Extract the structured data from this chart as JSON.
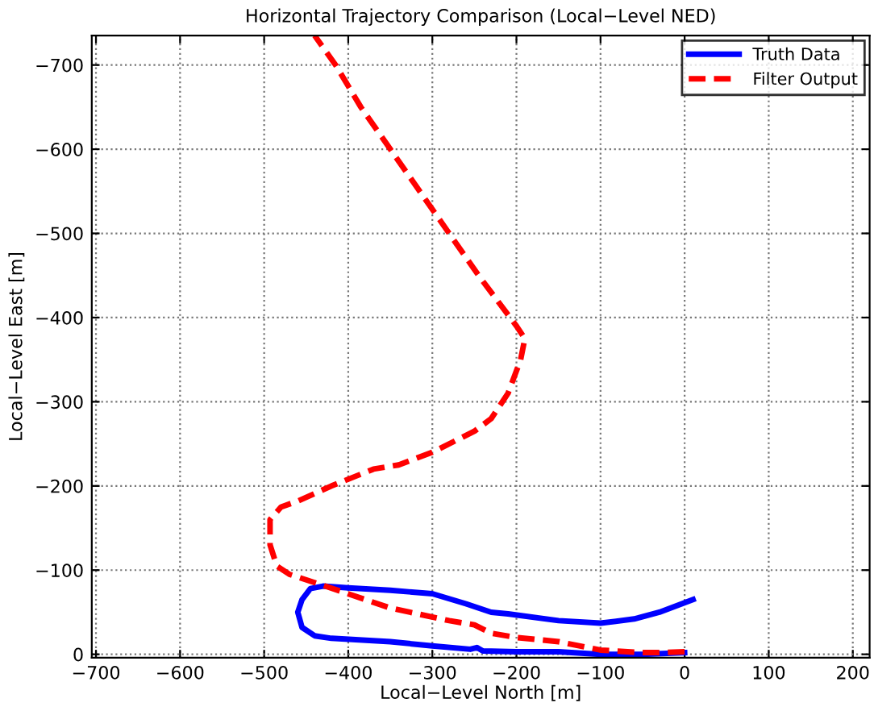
{
  "chart_data": {
    "type": "line",
    "title": "Horizontal Trajectory Comparison (Local−Level NED)",
    "xlabel": "Local−Level North [m]",
    "ylabel": "Local−Level East [m]",
    "xlim": [
      -705,
      220
    ],
    "ylim": [
      4,
      -735
    ],
    "xticks": [
      -700,
      -600,
      -500,
      -400,
      -300,
      -200,
      -100,
      0,
      100,
      200
    ],
    "yticks": [
      0,
      -100,
      -200,
      -300,
      -400,
      -500,
      -600,
      -700
    ],
    "grid": true,
    "legend": "top right",
    "series": [
      {
        "name": "Truth Data",
        "color": "#0000ff",
        "line_style": "solid",
        "x": [
          10,
          -30,
          -60,
          -100,
          -150,
          -210,
          -230,
          -260,
          -300,
          -350,
          -400,
          -430,
          -445,
          -455,
          -460,
          -455,
          -440,
          -420,
          -350,
          -300,
          -255,
          -247,
          -240,
          -200,
          -150,
          -100,
          -50,
          0
        ],
        "values": [
          -65,
          -50,
          -42,
          -37,
          -40,
          -48,
          -50,
          -60,
          -72,
          -76,
          -79,
          -81,
          -78,
          -65,
          -50,
          -32,
          -22,
          -19,
          -15,
          -10,
          -6,
          -8,
          -4,
          -3,
          -3,
          0,
          0,
          -2
        ]
      },
      {
        "name": "Filter Output",
        "color": "#ff0000",
        "line_style": "dashed",
        "x": [
          0,
          -30,
          -50,
          -100,
          -150,
          -200,
          -230,
          -250,
          -280,
          -350,
          -430,
          -470,
          -485,
          -493,
          -493,
          -480,
          -460,
          -420,
          -370,
          -340,
          -300,
          -250,
          -230,
          -210,
          -195,
          -190,
          -200,
          -245,
          -280,
          -315,
          -350,
          -385,
          -415,
          -440
        ],
        "values": [
          -3,
          -2,
          -2,
          -5,
          -15,
          -20,
          -25,
          -35,
          -40,
          -55,
          -82,
          -95,
          -105,
          -130,
          -160,
          -175,
          -182,
          -200,
          -220,
          -225,
          -240,
          -265,
          -280,
          -310,
          -350,
          -375,
          -390,
          -450,
          -500,
          -550,
          -600,
          -650,
          -700,
          -735
        ]
      }
    ]
  }
}
